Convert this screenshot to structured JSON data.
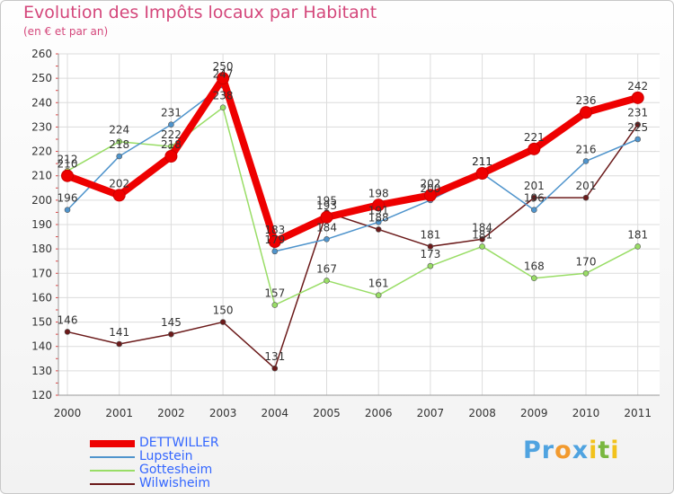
{
  "chart_data": {
    "type": "line",
    "title": "Evolution des Impôts locaux par Habitant",
    "subtitle": "(en € et par an)",
    "xlabel": "",
    "ylabel": "",
    "categories": [
      "2000",
      "2001",
      "2002",
      "2003",
      "2004",
      "2005",
      "2006",
      "2007",
      "2008",
      "2009",
      "2010",
      "2011"
    ],
    "ylim": [
      120,
      260
    ],
    "yticks": [
      120,
      130,
      140,
      150,
      160,
      170,
      180,
      190,
      200,
      210,
      220,
      230,
      240,
      250,
      260
    ],
    "grid": true,
    "legend_position": "bottom-left",
    "series": [
      {
        "name": "Wilwisheim",
        "color": "#6b1a1a",
        "values": [
          146,
          141,
          145,
          150,
          131,
          195,
          188,
          181,
          184,
          201,
          201,
          231
        ],
        "labels": [
          "146",
          "141",
          "145",
          "150",
          "131",
          "195",
          "188",
          "181",
          "184",
          "201",
          "201",
          "231"
        ]
      },
      {
        "name": "Gottesheim",
        "color": "#99dd66",
        "values": [
          212,
          224,
          222,
          238,
          157,
          167,
          161,
          173,
          181,
          168,
          170,
          181
        ],
        "labels": [
          "212",
          "224",
          "222",
          "238",
          "157",
          "167",
          "161",
          "173",
          "181",
          "168",
          "170",
          "181"
        ]
      },
      {
        "name": "Lupstein",
        "color": "#4f94cc",
        "values": [
          196,
          218,
          231,
          247,
          179,
          184,
          191,
          200,
          211,
          196,
          216,
          225
        ],
        "labels": [
          "196",
          "218",
          "231",
          "247",
          "179",
          "184",
          "191",
          "200",
          "211",
          "196",
          "216",
          "225"
        ]
      },
      {
        "name": "DETTWILLER",
        "color": "#ee0000",
        "values": [
          210,
          202,
          218,
          250,
          183,
          193,
          198,
          202,
          211,
          221,
          236,
          242
        ],
        "labels": [
          "210",
          "202",
          "218",
          "250",
          "183",
          "193",
          "198",
          "202",
          "211",
          "221",
          "236",
          "242"
        ]
      }
    ]
  },
  "legend": {
    "items": [
      {
        "name": "DETTWILLER",
        "color": "#ee0000",
        "text_color": "#3366ff"
      },
      {
        "name": "Lupstein",
        "color": "#4f94cc",
        "text_color": "#3366ff"
      },
      {
        "name": "Gottesheim",
        "color": "#99dd66",
        "text_color": "#3366ff"
      },
      {
        "name": "Wilwisheim",
        "color": "#6b1a1a",
        "text_color": "#3366ff"
      }
    ]
  },
  "brand": {
    "letters": [
      "P",
      "r",
      "o",
      "x",
      "i",
      "t",
      "i"
    ],
    "colors": [
      "#4fa3e0",
      "#4fa3e0",
      "#f29a2e",
      "#4fa3e0",
      "#f2c21c",
      "#79b740",
      "#f2c21c"
    ]
  }
}
